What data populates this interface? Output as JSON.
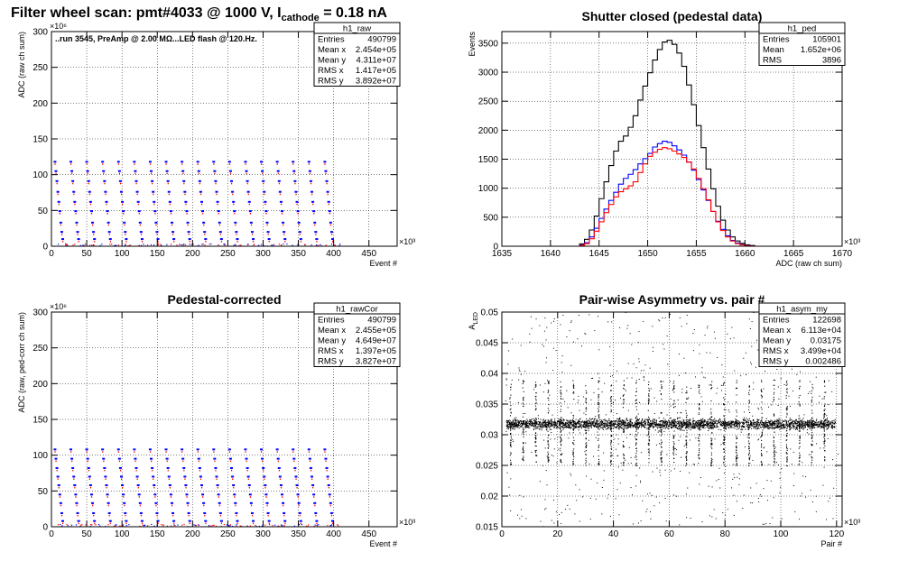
{
  "figure_title": {
    "main": "Filter wheel scan: pmt#4033 @  1000 V, I",
    "subscript": "cathode",
    "suffix": " = 0.18 nA"
  },
  "chart_data": [
    {
      "id": "raw",
      "type": "scatter",
      "title": "",
      "annotation": "..run 3545, PreAmp @ 2.00 MΩ...LED flash @  120.Hz.",
      "xlabel": "Event #",
      "ylabel": "ADC (raw ch sum)",
      "x_exponent": "×10³",
      "y_exponent": "×10⁶",
      "xlim": [
        0,
        490
      ],
      "ylim": [
        0,
        300
      ],
      "xticks": [
        0,
        50,
        100,
        150,
        200,
        250,
        300,
        350,
        400,
        450
      ],
      "yticks": [
        0,
        50,
        100,
        150,
        200,
        250,
        300
      ],
      "grid": true,
      "stats": {
        "name": "h1_raw",
        "rows": [
          [
            "Entries",
            "490799"
          ],
          [
            "Mean x",
            "2.454e+05"
          ],
          [
            "Mean y",
            "4.311e+07"
          ],
          [
            "RMS x",
            "1.417e+05"
          ],
          [
            "RMS y",
            "3.892e+07"
          ]
        ]
      },
      "pattern": {
        "step_levels": [
          118,
          105,
          91,
          76,
          62,
          49,
          33,
          20,
          10
        ],
        "period": 22.5,
        "cycles": 18,
        "colors": [
          "#0000ff",
          "#ff0000"
        ]
      }
    },
    {
      "id": "ped",
      "type": "line",
      "title": "Shutter closed (pedestal data)",
      "xlabel": "ADC (raw ch sum)",
      "ylabel": "Events",
      "x_exponent": "×10³",
      "xlim": [
        1635,
        1670
      ],
      "ylim": [
        0,
        3700
      ],
      "xticks": [
        1635,
        1640,
        1645,
        1650,
        1655,
        1660,
        1665,
        1670
      ],
      "yticks": [
        0,
        500,
        1000,
        1500,
        2000,
        2500,
        3000,
        3500
      ],
      "grid": true,
      "stats": {
        "name": "h1_ped",
        "rows": [
          [
            "Entries",
            "105901"
          ],
          [
            "Mean",
            "1.652e+06"
          ],
          [
            "RMS",
            "3896"
          ]
        ]
      },
      "series": [
        {
          "color": "#000000",
          "x0": 1643,
          "step": 0.5,
          "values": [
            40,
            120,
            280,
            520,
            820,
            1110,
            1390,
            1640,
            1810,
            1900,
            2050,
            2250,
            2520,
            2760,
            2990,
            3210,
            3390,
            3520,
            3550,
            3480,
            3330,
            3100,
            2780,
            2440,
            2080,
            1700,
            1330,
            990,
            690,
            450,
            280,
            160,
            90,
            50,
            25,
            12
          ]
        },
        {
          "color": "#0000ff",
          "x0": 1643,
          "step": 0.5,
          "values": [
            20,
            60,
            160,
            310,
            480,
            640,
            790,
            930,
            1070,
            1170,
            1240,
            1320,
            1420,
            1510,
            1600,
            1710,
            1770,
            1810,
            1790,
            1730,
            1660,
            1570,
            1450,
            1310,
            1150,
            970,
            790,
            600,
            430,
            290,
            180,
            100,
            55,
            28,
            12,
            5
          ]
        },
        {
          "color": "#ff0000",
          "x0": 1643,
          "step": 0.5,
          "values": [
            15,
            45,
            130,
            260,
            420,
            580,
            720,
            850,
            940,
            990,
            1040,
            1110,
            1270,
            1420,
            1550,
            1620,
            1670,
            1700,
            1680,
            1640,
            1590,
            1530,
            1450,
            1330,
            1170,
            990,
            800,
            600,
            420,
            270,
            160,
            90,
            45,
            22,
            10,
            4
          ]
        }
      ]
    },
    {
      "id": "rawCor",
      "type": "scatter",
      "title": "Pedestal-corrected",
      "xlabel": "Event #",
      "ylabel": "ADC (raw, ped-corr ch sum)",
      "x_exponent": "×10³",
      "y_exponent": "×10⁶",
      "xlim": [
        0,
        490
      ],
      "ylim": [
        0,
        300
      ],
      "xticks": [
        0,
        50,
        100,
        150,
        200,
        250,
        300,
        350,
        400,
        450
      ],
      "yticks": [
        0,
        50,
        100,
        150,
        200,
        250,
        300
      ],
      "grid": true,
      "stats": {
        "name": "h1_rawCor",
        "rows": [
          [
            "Entries",
            "490799"
          ],
          [
            "Mean x",
            "2.455e+05"
          ],
          [
            "Mean y",
            "4.649e+07"
          ],
          [
            "RMS x",
            "1.397e+05"
          ],
          [
            "RMS y",
            "3.827e+07"
          ]
        ]
      },
      "pattern": {
        "step_levels": [
          108,
          95,
          82,
          70,
          58,
          45,
          33,
          19,
          8
        ],
        "period": 22.5,
        "cycles": 18,
        "colors": [
          "#0000ff",
          "#ff0000"
        ]
      }
    },
    {
      "id": "asym",
      "type": "scatter",
      "title": "Pair-wise Asymmetry vs. pair #",
      "xlabel": "Pair #",
      "ylabel": "A_LED",
      "x_exponent": "×10³",
      "xlim": [
        0,
        122
      ],
      "ylim": [
        0.015,
        0.05
      ],
      "xticks": [
        0,
        20,
        40,
        60,
        80,
        100,
        120
      ],
      "yticks": [
        0.015,
        0.02,
        0.025,
        0.03,
        0.035,
        0.04,
        0.045,
        0.05
      ],
      "grid": true,
      "stats": {
        "name": "h1_asym_my",
        "rows": [
          [
            "Entries",
            "122698"
          ],
          [
            "Mean x",
            "6.113e+04"
          ],
          [
            "Mean y",
            "0.03175"
          ],
          [
            "RMS x",
            "3.499e+04"
          ],
          [
            "RMS y",
            "0.002486"
          ]
        ]
      },
      "band": {
        "center": 0.0318,
        "halfwidth": 0.0012,
        "spike_period": 4.5,
        "spike_low": 0.025,
        "spike_high": 0.039
      }
    }
  ]
}
